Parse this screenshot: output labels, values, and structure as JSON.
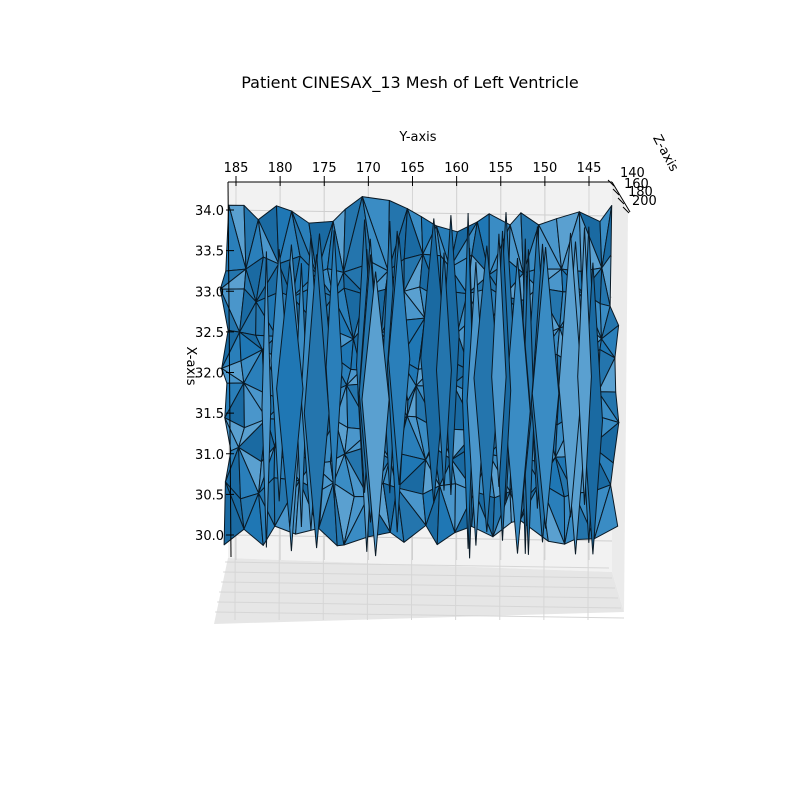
{
  "chart_data": {
    "type": "surface3d",
    "title": "Patient CINESAX_13 Mesh of Left Ventricle",
    "xlabel": "X-axis",
    "ylabel": "Y-axis",
    "zlabel": "Z-axis",
    "x_ticks": [
      "30.0",
      "30.5",
      "31.0",
      "31.5",
      "32.0",
      "32.5",
      "33.0",
      "33.5",
      "34.0"
    ],
    "x_tick_values": [
      30.0,
      30.5,
      31.0,
      31.5,
      32.0,
      32.5,
      33.0,
      33.5,
      34.0
    ],
    "y_ticks": [
      "185",
      "180",
      "175",
      "170",
      "165",
      "160",
      "155",
      "150",
      "145"
    ],
    "y_tick_values": [
      185,
      180,
      175,
      170,
      165,
      160,
      155,
      150,
      145
    ],
    "z_ticks": [
      "140",
      "160",
      "180",
      "200"
    ],
    "z_tick_values": [
      140,
      160,
      180,
      200
    ],
    "xlim": [
      29.7,
      34.3
    ],
    "ylim": [
      143,
      187
    ],
    "zlim": [
      135,
      205
    ],
    "grid": true,
    "view": "looking along Z-axis (top-down), Y-axis across the top, X-axis vertical on the left",
    "surface_color": "#1f77b4",
    "edge_color": "#000000",
    "pane_color": "#f2f2f2"
  }
}
